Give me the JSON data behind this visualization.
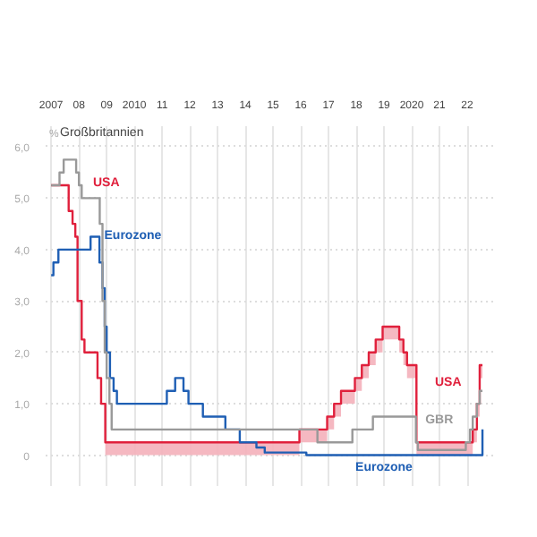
{
  "chart_data": {
    "type": "step",
    "ylabel": "%",
    "xlim": [
      2006.8,
      2023
    ],
    "ylim": [
      -0.6,
      6.4
    ],
    "xticks": [
      {
        "value": 2007,
        "label": "2007"
      },
      {
        "value": 2008,
        "label": "08"
      },
      {
        "value": 2009,
        "label": "09"
      },
      {
        "value": 2010,
        "label": "2010"
      },
      {
        "value": 2011,
        "label": "11"
      },
      {
        "value": 2012,
        "label": "12"
      },
      {
        "value": 2013,
        "label": "13"
      },
      {
        "value": 2014,
        "label": "14"
      },
      {
        "value": 2015,
        "label": "15"
      },
      {
        "value": 2016,
        "label": "16"
      },
      {
        "value": 2017,
        "label": "17"
      },
      {
        "value": 2018,
        "label": "18"
      },
      {
        "value": 2019,
        "label": "19"
      },
      {
        "value": 2020,
        "label": "2020"
      },
      {
        "value": 2021,
        "label": "21"
      },
      {
        "value": 2022,
        "label": "22"
      }
    ],
    "yticks": [
      {
        "value": 0,
        "label": "0"
      },
      {
        "value": 1,
        "label": "1,0"
      },
      {
        "value": 2,
        "label": "2,0"
      },
      {
        "value": 3,
        "label": "3,0"
      },
      {
        "value": 4,
        "label": "4,0"
      },
      {
        "value": 5,
        "label": "5,0"
      },
      {
        "value": 6,
        "label": "6,0"
      }
    ],
    "grid": true,
    "marker": "none",
    "line_style": "solid",
    "series": [
      {
        "name": "USA",
        "color": "#e0203c",
        "x": [
          2007.0,
          2007.63,
          2007.77,
          2007.87,
          2007.95,
          2008.1,
          2008.2,
          2008.67,
          2008.8,
          2008.95,
          2015.95,
          2016.95,
          2017.2,
          2017.45,
          2017.95,
          2018.2,
          2018.45,
          2018.7,
          2018.95,
          2019.55,
          2019.7,
          2019.83,
          2020.17,
          2022.2,
          2022.35,
          2022.45,
          2022.55
        ],
        "values": [
          5.25,
          4.75,
          4.5,
          4.25,
          3.0,
          2.25,
          2.0,
          1.5,
          1.0,
          0.25,
          0.5,
          0.75,
          1.0,
          1.25,
          1.5,
          1.75,
          2.0,
          2.25,
          2.5,
          2.25,
          2.0,
          1.75,
          0.25,
          0.5,
          1.0,
          1.75,
          1.75
        ],
        "lower": [
          5.25,
          4.75,
          4.5,
          4.25,
          3.0,
          2.25,
          2.0,
          1.5,
          1.0,
          0,
          0.25,
          0.5,
          0.75,
          1.0,
          1.25,
          1.5,
          1.75,
          2.0,
          2.25,
          2.0,
          1.75,
          1.5,
          0,
          0.25,
          0.75,
          1.5,
          1.5
        ],
        "upper": [
          5.25,
          4.75,
          4.5,
          4.25,
          3.0,
          2.25,
          2.0,
          1.5,
          1.0,
          0.25,
          0.5,
          0.75,
          1.0,
          1.25,
          1.5,
          1.75,
          2.0,
          2.25,
          2.5,
          2.25,
          2.0,
          1.75,
          0.25,
          0.5,
          1.0,
          1.75,
          1.75
        ]
      },
      {
        "name": "Eurozone",
        "color": "#1f5fb4",
        "x": [
          2007.0,
          2007.08,
          2007.26,
          2008.42,
          2008.74,
          2008.85,
          2008.93,
          2009.0,
          2009.12,
          2009.25,
          2009.37,
          2011.17,
          2011.47,
          2011.77,
          2011.95,
          2012.47,
          2013.28,
          2013.8,
          2014.4,
          2014.7,
          2016.2,
          2022.55,
          2022.55
        ],
        "values": [
          3.5,
          3.75,
          4.0,
          4.25,
          3.75,
          3.25,
          2.5,
          2.0,
          1.5,
          1.25,
          1.0,
          1.25,
          1.5,
          1.25,
          1.0,
          0.75,
          0.5,
          0.25,
          0.15,
          0.05,
          0.0,
          0.0,
          0.5
        ]
      },
      {
        "name": "GBR",
        "color": "#999999",
        "x": [
          2007.0,
          2007.3,
          2007.45,
          2007.9,
          2008.0,
          2008.1,
          2008.75,
          2008.85,
          2008.93,
          2009.0,
          2009.1,
          2009.18,
          2016.6,
          2017.86,
          2018.6,
          2020.15,
          2020.22,
          2021.95,
          2022.1,
          2022.2,
          2022.35,
          2022.45,
          2022.55
        ],
        "values": [
          5.25,
          5.5,
          5.75,
          5.5,
          5.25,
          5.0,
          4.5,
          3.0,
          2.0,
          1.5,
          1.0,
          0.5,
          0.25,
          0.5,
          0.75,
          0.25,
          0.1,
          0.25,
          0.5,
          0.75,
          1.0,
          1.25,
          1.25
        ]
      }
    ],
    "annotations": [
      "Großbritannien",
      "USA",
      "Eurozone"
    ]
  }
}
